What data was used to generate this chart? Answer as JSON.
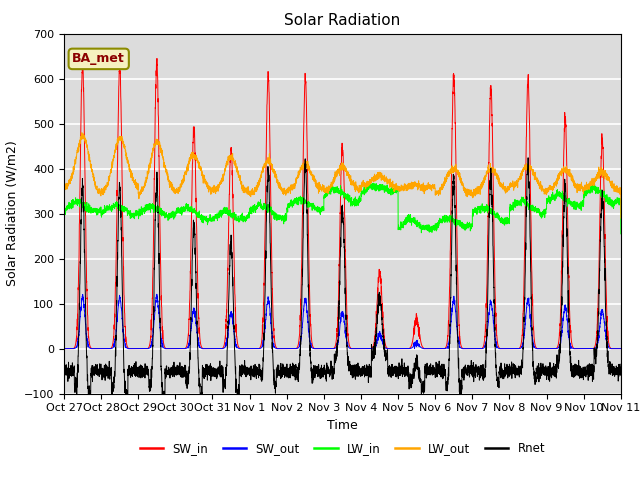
{
  "title": "Solar Radiation",
  "ylabel": "Solar Radiation (W/m2)",
  "xlabel": "Time",
  "ylim": [
    -100,
    700
  ],
  "x_tick_labels": [
    "Oct 27",
    "Oct 28",
    "Oct 29",
    "Oct 30",
    "Oct 31",
    "Nov 1",
    "Nov 2",
    "Nov 3",
    "Nov 4",
    "Nov 5",
    "Nov 6",
    "Nov 7",
    "Nov 8",
    "Nov 9",
    "Nov 10",
    "Nov 11"
  ],
  "legend_labels": [
    "SW_in",
    "SW_out",
    "LW_in",
    "LW_out",
    "Rnet"
  ],
  "legend_colors": [
    "red",
    "blue",
    "lime",
    "orange",
    "black"
  ],
  "annotation": "BA_met",
  "plot_bg_color": "#dcdcdc",
  "grid_color": "white",
  "days": 15,
  "n_points": 4320,
  "seed": 7
}
